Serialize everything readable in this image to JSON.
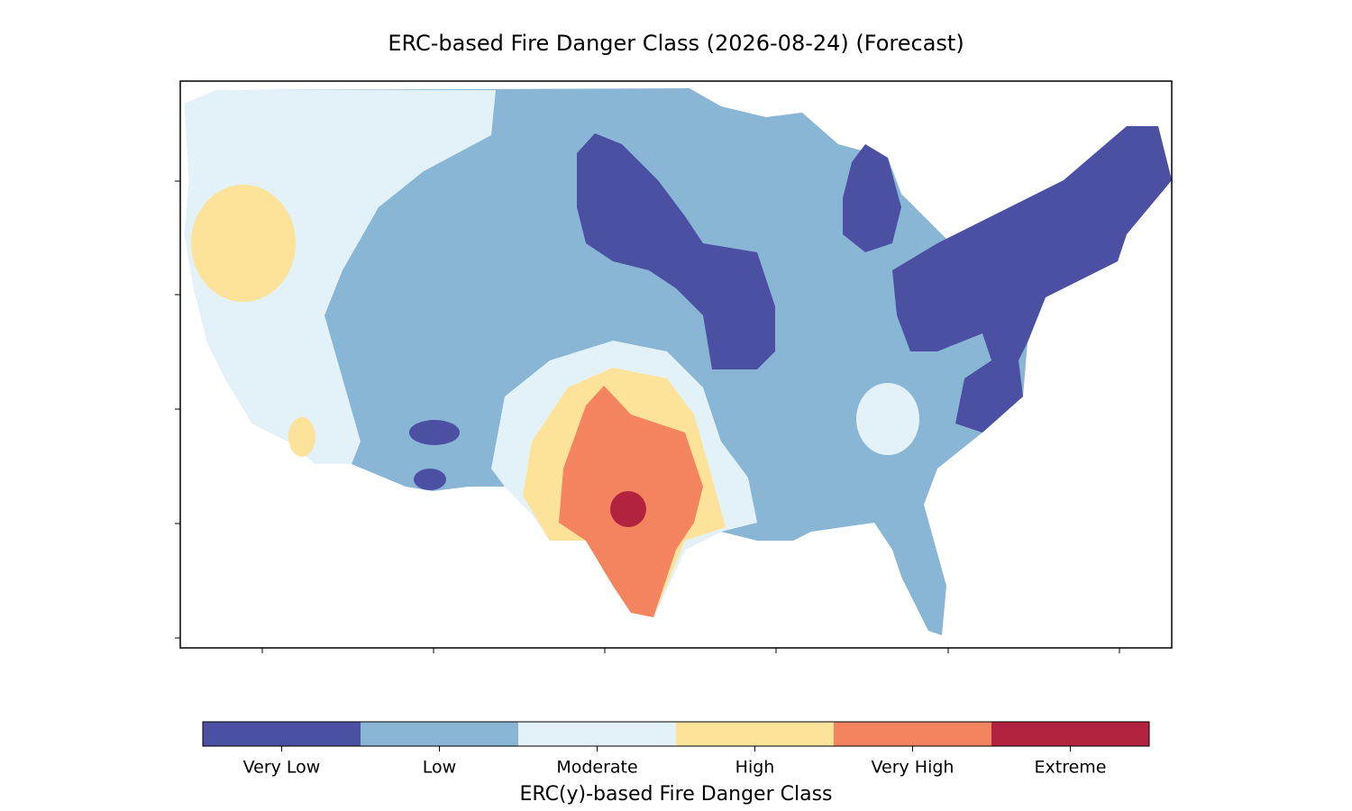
{
  "title": "ERC-based Fire Danger Class (2026-08-24) (Forecast)",
  "legend": {
    "title": "ERC(y)-based Fire Danger Class",
    "classes": [
      {
        "label": "Very Low",
        "color": "#4b50a3"
      },
      {
        "label": "Low",
        "color": "#8ab6d6"
      },
      {
        "label": "Moderate",
        "color": "#e3f2f8"
      },
      {
        "label": "High",
        "color": "#fde29a"
      },
      {
        "label": "Very High",
        "color": "#f4845f"
      },
      {
        "label": "Extreme",
        "color": "#b2233f"
      }
    ]
  }
}
